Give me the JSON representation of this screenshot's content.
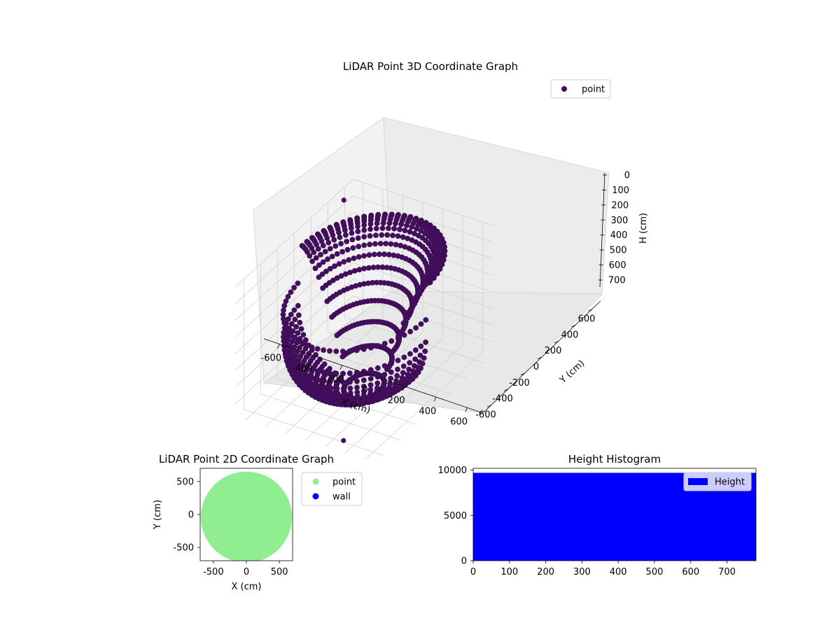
{
  "chart_data": [
    {
      "type": "scatter",
      "projection": "3d",
      "title": "LiDAR Point 3D Coordinate Graph",
      "xlabel": "X (cm)",
      "ylabel": "Y (cm)",
      "zlabel": "H (cm)",
      "xlim": [
        -700,
        700
      ],
      "ylim": [
        -700,
        700
      ],
      "zlim": [
        780,
        0
      ],
      "z_inverted": true,
      "xticks": [
        -600,
        -400,
        -200,
        0,
        200,
        400,
        600
      ],
      "yticks": [
        -600,
        -400,
        -200,
        0,
        200,
        400,
        600
      ],
      "zticks": [
        0,
        100,
        200,
        300,
        400,
        500,
        600,
        700
      ],
      "grid": true,
      "legend": {
        "placement": "upper-right",
        "entries": [
          "point"
        ]
      },
      "series": [
        {
          "name": "point",
          "color": "#440f5e",
          "shape": "lidar sweep: full-height wall ring (radius ~600) on the far side, curving down to a floor dome on the near side",
          "points_sample": [
            {
              "x": -620,
              "y": 560,
              "h": 60
            },
            {
              "x": 0,
              "y": 620,
              "h": 0
            },
            {
              "x": 600,
              "y": 0,
              "h": 300
            },
            {
              "x": -650,
              "y": -200,
              "h": 300
            },
            {
              "x": 0,
              "y": 0,
              "h": 780
            },
            {
              "x": 250,
              "y": -550,
              "h": 780
            }
          ]
        }
      ]
    },
    {
      "type": "scatter",
      "title": "LiDAR Point 2D Coordinate Graph",
      "xlabel": "X (cm)",
      "ylabel": "Y (cm)",
      "xlim": [
        -700,
        700
      ],
      "ylim": [
        -700,
        700
      ],
      "xticks": [
        -500,
        0,
        500
      ],
      "yticks": [
        -500,
        0,
        500
      ],
      "aspect": "equal",
      "legend": {
        "placement": "outside-right",
        "entries": [
          "point",
          "wall"
        ]
      },
      "series": [
        {
          "name": "point",
          "color": "#90ee90",
          "region": "filled disc of radius ~690 centered near (0, 0), clipped by the axes"
        },
        {
          "name": "wall",
          "color": "#0000ff",
          "count": 0
        }
      ]
    },
    {
      "type": "bar",
      "subtype": "histogram",
      "title": "Height Histogram",
      "xlim": [
        0,
        780
      ],
      "ylim": [
        0,
        10200
      ],
      "xticks": [
        0,
        100,
        200,
        300,
        400,
        500,
        600,
        700
      ],
      "yticks": [
        0,
        5000,
        10000
      ],
      "legend": {
        "placement": "upper-right",
        "entries": [
          "Height"
        ]
      },
      "series": [
        {
          "name": "Height",
          "color": "#0000ff",
          "bin_range": [
            0,
            780
          ],
          "count_per_bin": 9700
        }
      ]
    }
  ]
}
